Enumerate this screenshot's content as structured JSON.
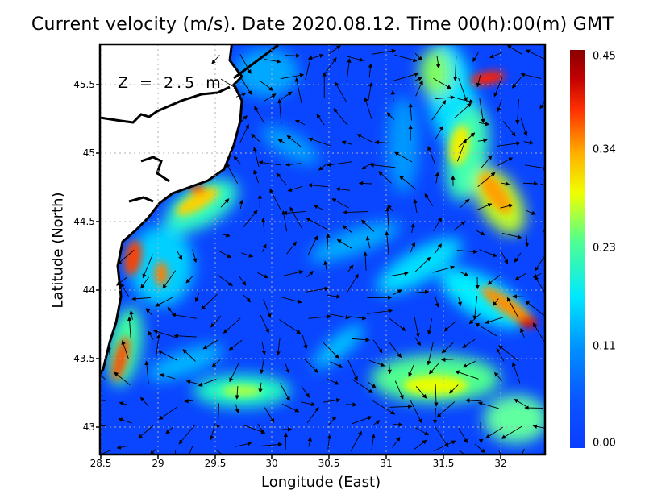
{
  "title": "Current velocity (m/s). Date 2020.08.12. Time 00(h):00(m) GMT",
  "annotation": "Z = 2.5 m",
  "chart_data": {
    "type": "heatmap",
    "title": "Current velocity (m/s). Date 2020.08.12. Time 00(h):00(m) GMT",
    "xlabel": "Longitude (East)",
    "ylabel": "Latitude (North)",
    "xlim": [
      28.5,
      32.4
    ],
    "ylim": [
      42.8,
      45.8
    ],
    "x_ticks": [
      "28.5",
      "29",
      "29.5",
      "30",
      "30.5",
      "31",
      "31.5",
      "32"
    ],
    "y_ticks": [
      "43",
      "43.5",
      "44",
      "44.5",
      "45",
      "45.5"
    ],
    "grid": true,
    "colorbar": {
      "range": [
        0.0,
        0.45
      ],
      "ticks": [
        "0.45",
        "0.34",
        "0.23",
        "0.11",
        "0.00"
      ]
    }
  }
}
